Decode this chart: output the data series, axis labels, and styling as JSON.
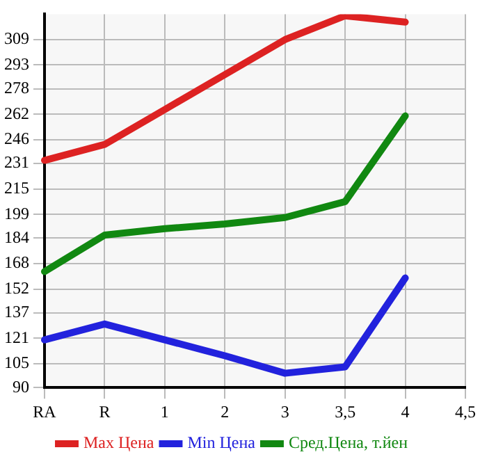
{
  "chart_data": {
    "type": "line",
    "categories": [
      "RA",
      "R",
      "1",
      "2",
      "3",
      "3,5",
      "4",
      "4,5"
    ],
    "series": [
      {
        "name": "Max Цена",
        "color": "#dd2222",
        "values": [
          233,
          243,
          265,
          287,
          309,
          324,
          320,
          null
        ]
      },
      {
        "name": "Min Цена",
        "color": "#2222dd",
        "values": [
          120,
          130,
          120,
          110,
          99,
          103,
          159,
          null
        ]
      },
      {
        "name": "Сред.Цена, т.йен",
        "color": "#118811",
        "values": [
          163,
          186,
          190,
          193,
          197,
          207,
          261,
          null
        ]
      }
    ],
    "ylim": [
      90,
      325
    ],
    "yticks": [
      90,
      105,
      121,
      137,
      152,
      168,
      184,
      199,
      215,
      231,
      246,
      262,
      278,
      293,
      309
    ],
    "grid": true,
    "legend": "bottom",
    "marker": "none",
    "line_style": "solid"
  }
}
